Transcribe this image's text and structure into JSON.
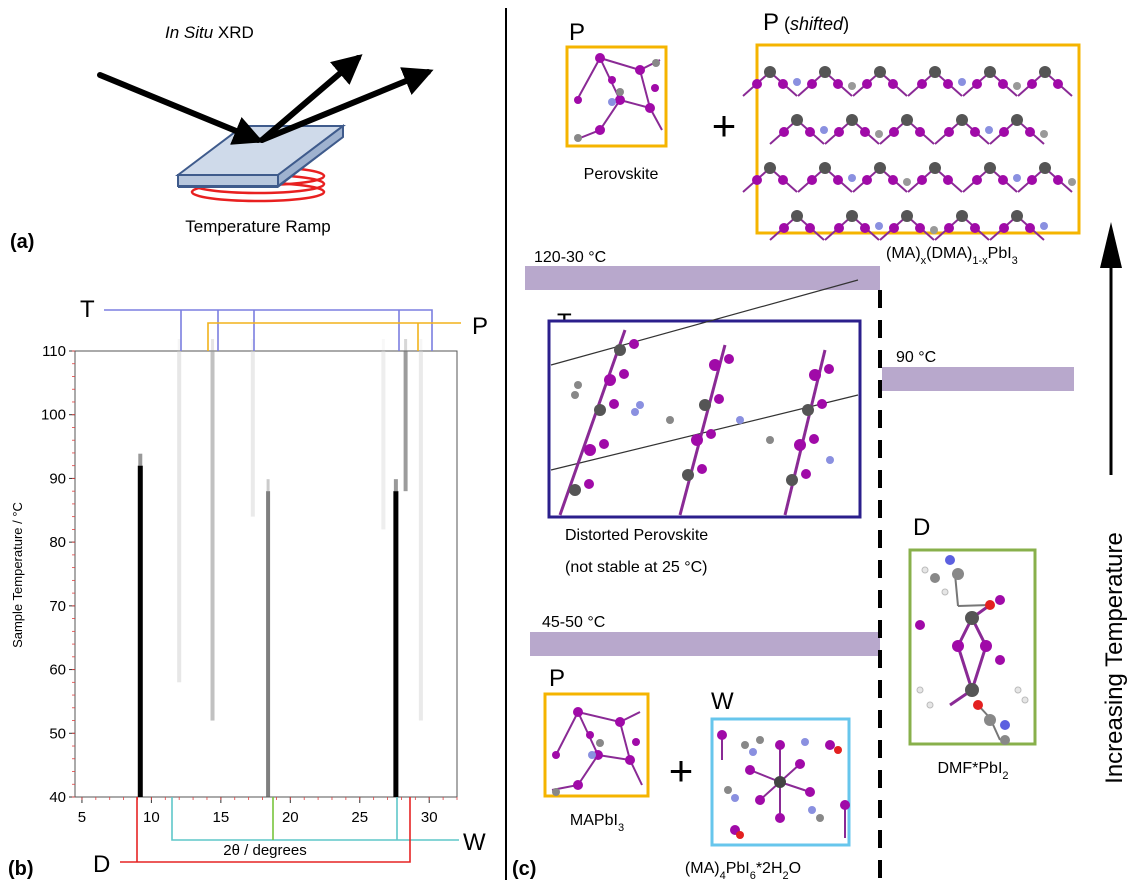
{
  "panel_a": {
    "label": "(a)",
    "xrd_italic": "In Situ",
    "xrd_rest": " XRD",
    "ramp_label": "Temperature Ramp"
  },
  "panel_b": {
    "label": "(b)",
    "y_axis_label": "Sample Temperature / °C",
    "x_axis_label": "2θ / degrees",
    "phase_T": "T",
    "phase_P": "P",
    "phase_W": "W",
    "phase_D": "D"
  },
  "panel_c": {
    "label": "(c)",
    "top_P": "P",
    "top_perovskite": "Perovskite",
    "plus1": "+",
    "shifted_P": "P",
    "shifted_word": "shifted",
    "mixed_formula_pre": "(MA)",
    "mixed_sub_x": "x",
    "mixed_mid": "(DMA)",
    "mixed_sub_1x": "1-x",
    "mixed_tail": "PbI",
    "mixed_sub_3": "3",
    "temp_band_1": "120-30  °C",
    "T_label": "T",
    "distorted_line1": "Distorted Perovskite",
    "distorted_line2": "(not stable at 25 °C)",
    "temp_band_2": "90  °C",
    "D_label": "D",
    "dmf_pre": "DMF*PbI",
    "dmf_sub": "2",
    "temp_band_3": "45-50  °C",
    "bottom_P": "P",
    "bottom_W": "W",
    "plus2": "+",
    "mapbi_pre": "MAPbI",
    "mapbi_sub": "3",
    "hydrate_pre": "(MA)",
    "hydrate_sub4": "4",
    "hydrate_mid": "PbI",
    "hydrate_sub6": "6",
    "hydrate_tail": "*2H",
    "hydrate_sub2": "2",
    "hydrate_end": "O",
    "increasing_temp": "Increasing Temperature"
  },
  "chart_data": {
    "type": "heatmap",
    "xlabel": "2θ / degrees",
    "ylabel": "Sample Temperature / °C",
    "xlim": [
      4.5,
      32
    ],
    "ylim": [
      40,
      110
    ],
    "x_ticks": [
      5,
      10,
      15,
      20,
      25,
      30
    ],
    "y_ticks": [
      40,
      50,
      60,
      70,
      80,
      90,
      100,
      110
    ],
    "peaks": [
      {
        "x": 9.2,
        "y_from": 40,
        "y_to": 92,
        "intensity": 1.0
      },
      {
        "x": 18.4,
        "y_from": 40,
        "y_to": 88,
        "intensity": 0.65
      },
      {
        "x": 27.6,
        "y_from": 40,
        "y_to": 88,
        "intensity": 1.0
      },
      {
        "x": 12.0,
        "y_from": 58,
        "y_to": 110,
        "intensity": 0.2
      },
      {
        "x": 14.4,
        "y_from": 52,
        "y_to": 110,
        "intensity": 0.4
      },
      {
        "x": 28.3,
        "y_from": 88,
        "y_to": 110,
        "intensity": 0.55
      },
      {
        "x": 17.3,
        "y_from": 84,
        "y_to": 110,
        "intensity": 0.18
      },
      {
        "x": 26.7,
        "y_from": 82,
        "y_to": 110,
        "intensity": 0.15
      },
      {
        "x": 29.4,
        "y_from": 52,
        "y_to": 110,
        "intensity": 0.18
      }
    ]
  },
  "colors": {
    "T": "#7b7fe0",
    "P": "#f2b21b",
    "W": "#5fc7c9",
    "D": "#e62424",
    "green": "#78c43c",
    "band": "#b8a8cc",
    "T_box": "#2b1f8c",
    "P_box": "#f5b400",
    "W_box": "#67c6ec",
    "D_box": "#88b04b"
  }
}
